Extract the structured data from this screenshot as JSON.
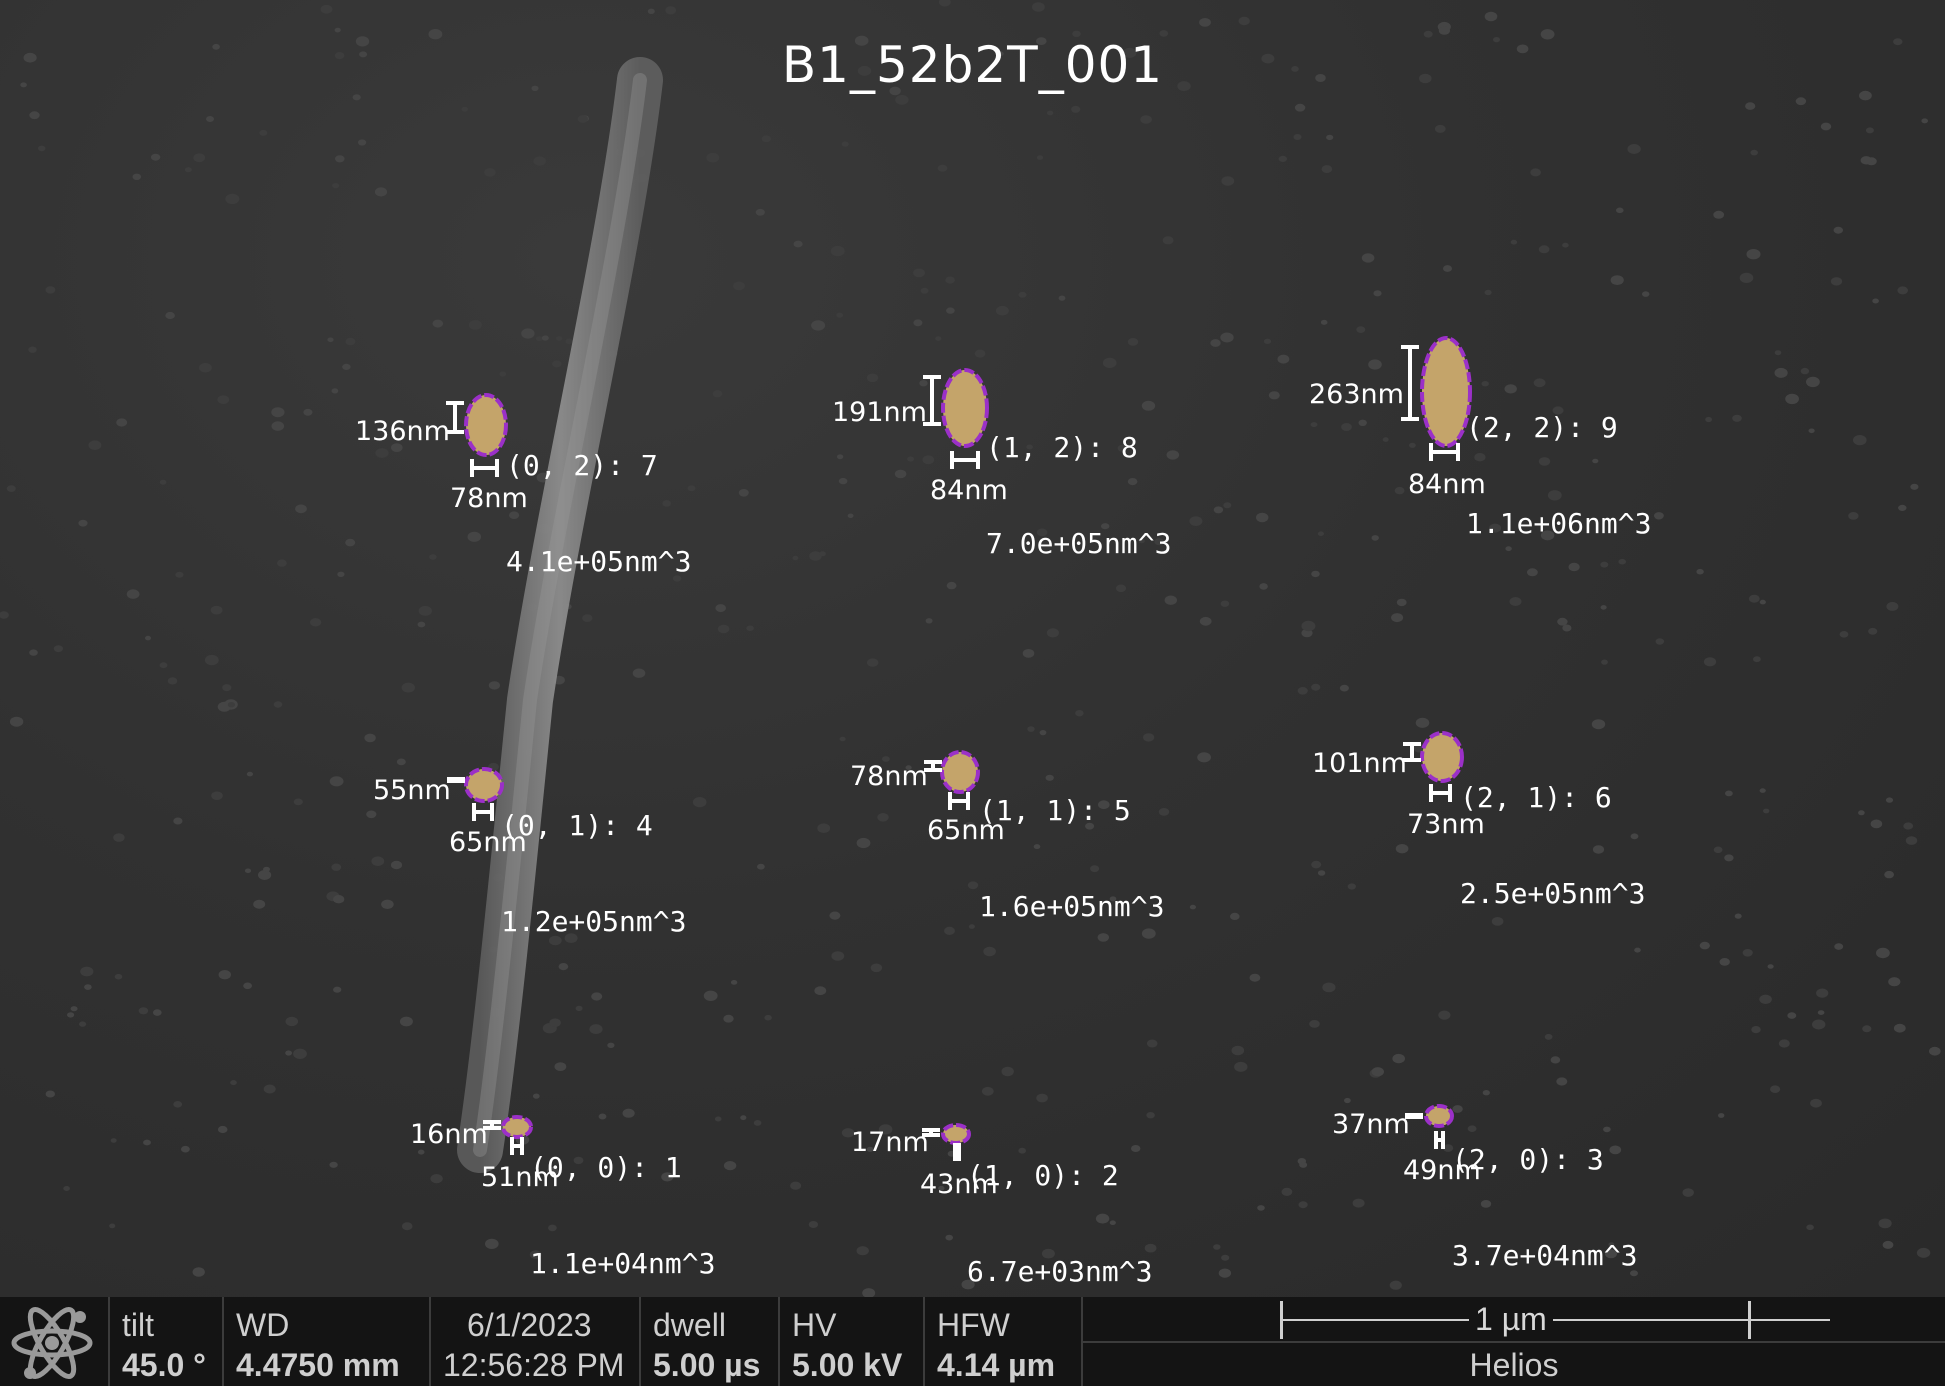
{
  "image": {
    "title": "B1_52b2T_001"
  },
  "particles": [
    {
      "id": "p7",
      "label": "(0, 2): 7",
      "volume": "4.1e+05nm^3",
      "height": "136nm",
      "width": "78nm"
    },
    {
      "id": "p8",
      "label": "(1, 2): 8",
      "volume": "7.0e+05nm^3",
      "height": "191nm",
      "width": "84nm"
    },
    {
      "id": "p9",
      "label": "(2, 2): 9",
      "volume": "1.1e+06nm^3",
      "height": "263nm",
      "width": "84nm"
    },
    {
      "id": "p4",
      "label": "(0, 1): 4",
      "volume": "1.2e+05nm^3",
      "height": "55nm",
      "width": "65nm"
    },
    {
      "id": "p5",
      "label": "(1, 1): 5",
      "volume": "1.6e+05nm^3",
      "height": "78nm",
      "width": "65nm"
    },
    {
      "id": "p6",
      "label": "(2, 1): 6",
      "volume": "2.5e+05nm^3",
      "height": "101nm",
      "width": "73nm"
    },
    {
      "id": "p1",
      "label": "(0, 0): 1",
      "volume": "1.1e+04nm^3",
      "height": "16nm",
      "width": "51nm"
    },
    {
      "id": "p2",
      "label": "(1, 0): 2",
      "volume": "6.7e+03nm^3",
      "height": "17nm",
      "width": "43nm"
    },
    {
      "id": "p3",
      "label": "(2, 0): 3",
      "volume": "3.7e+04nm^3",
      "height": "37nm",
      "width": "49nm"
    }
  ],
  "infobar": {
    "tilt_label": "tilt",
    "tilt_value": "45.0 °",
    "wd_label": "WD",
    "wd_value": "4.4750 mm",
    "date": "6/1/2023",
    "time": "12:56:28 PM",
    "dwell_label": "dwell",
    "dwell_value": "5.00 µs",
    "hv_label": "HV",
    "hv_value": "5.00 kV",
    "hfw_label": "HFW",
    "hfw_value": "4.14 µm",
    "scale_label": "1 µm",
    "instrument": "Helios"
  },
  "colors": {
    "particle_fill": "#c4a46a",
    "particle_outline": "#9b30c8",
    "annotation_text": "#ffffff",
    "infobar_bg": "#141414"
  }
}
